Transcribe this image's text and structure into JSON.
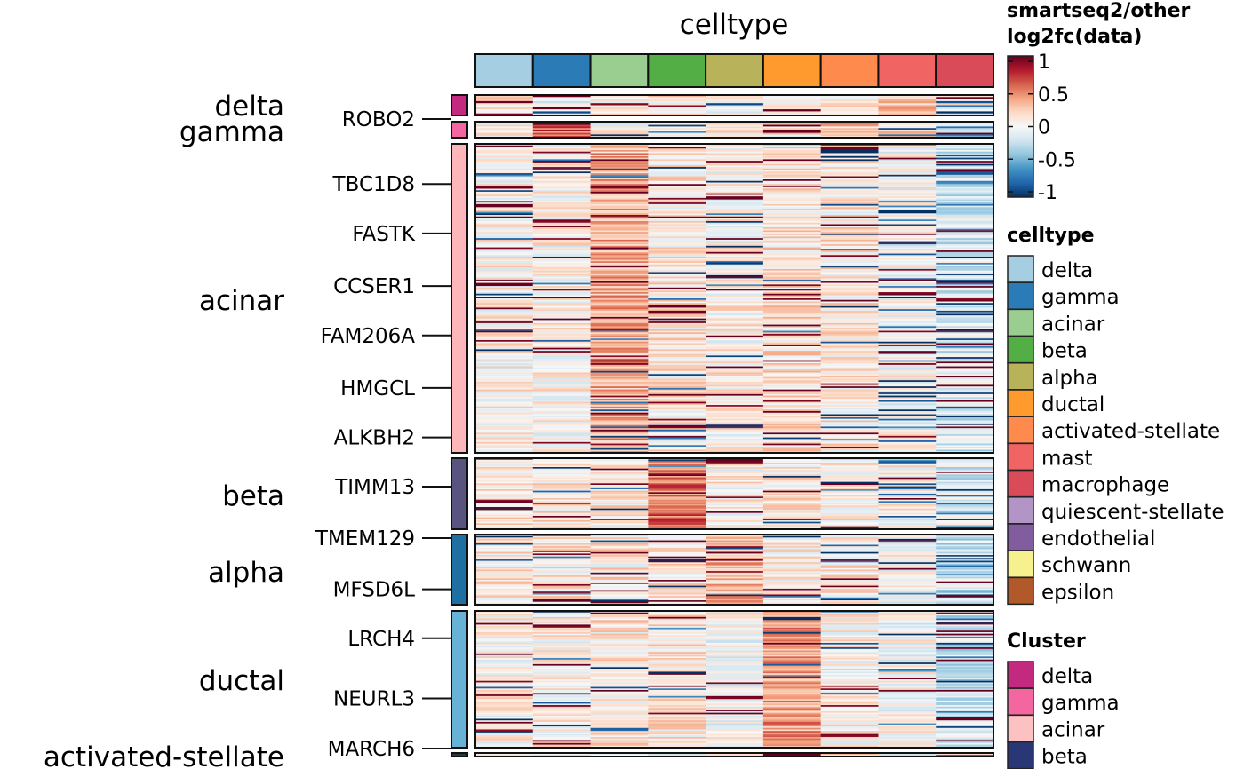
{
  "chart_data": {
    "type": "heatmap",
    "title": "celltype",
    "columns": [
      "delta",
      "gamma",
      "acinar",
      "beta",
      "alpha",
      "ductal",
      "activated-stellate",
      "mast",
      "macrophage"
    ],
    "column_colors": [
      "#A6CEE3",
      "#2B7BB7",
      "#9ACD90",
      "#52AE45",
      "#B8B35B",
      "#FF9A2E",
      "#FF8A4E",
      "#F06464",
      "#DA4B5A"
    ],
    "row_groups": [
      {
        "name": "delta",
        "color": "#C2297F",
        "rows": 10,
        "genes": [
          {
            "label": "ROBO2",
            "pos": 1.0
          }
        ],
        "bias": [
          0.15,
          0.0,
          0.05,
          0.15,
          0.0,
          0.05,
          0.1,
          0.25,
          0.0
        ]
      },
      {
        "name": "gamma",
        "color": "#F466A0",
        "rows": 10,
        "genes": [],
        "bias": [
          0.1,
          0.6,
          0.05,
          0.15,
          0.05,
          0.1,
          0.25,
          0.15,
          -0.3
        ]
      },
      {
        "name": "acinar",
        "color": "#FDB6BA",
        "rows": 200,
        "genes": [
          {
            "label": "TBC1D8",
            "pos": 0.13
          },
          {
            "label": "FASTK",
            "pos": 0.29
          },
          {
            "label": "CCSER1",
            "pos": 0.46
          },
          {
            "label": "FAM206A",
            "pos": 0.62
          },
          {
            "label": "HMGCL",
            "pos": 0.79
          },
          {
            "label": "ALKBH2",
            "pos": 0.95
          }
        ],
        "bias": [
          0.05,
          0.05,
          0.35,
          0.1,
          0.05,
          0.15,
          0.1,
          0.0,
          -0.15
        ]
      },
      {
        "name": "beta",
        "color": "#58537F",
        "rows": 48,
        "genes": [
          {
            "label": "TIMM13",
            "pos": 0.4
          }
        ],
        "bias": [
          0.1,
          0.1,
          0.1,
          0.55,
          0.05,
          0.1,
          0.1,
          0.05,
          -0.15
        ]
      },
      {
        "name": "alpha",
        "color": "#1F6FA3",
        "rows": 48,
        "genes": [
          {
            "label": "TMEM129",
            "pos": 0.05
          },
          {
            "label": "MFSD6L",
            "pos": 0.78
          }
        ],
        "bias": [
          0.1,
          0.1,
          0.1,
          0.1,
          0.3,
          0.05,
          0.1,
          0.0,
          -0.2
        ]
      },
      {
        "name": "ductal",
        "color": "#68B3D5",
        "rows": 90,
        "genes": [
          {
            "label": "LRCH4",
            "pos": 0.2
          },
          {
            "label": "NEURL3",
            "pos": 0.64
          },
          {
            "label": "MARCH6",
            "pos": 1.03
          }
        ],
        "bias": [
          0.05,
          0.05,
          0.1,
          0.1,
          0.0,
          0.4,
          0.05,
          0.0,
          -0.2
        ]
      },
      {
        "name": "activated-stellate",
        "color": "#223B3D",
        "rows": 2,
        "genes": [],
        "bias": [
          0,
          0,
          0,
          0,
          0,
          0,
          0.1,
          0,
          0
        ]
      }
    ],
    "colorbar": {
      "title_line1": "smartseq2/other",
      "title_line2": "log2fc(data)",
      "range": [
        -1,
        1
      ],
      "ticks": [
        "1",
        "0.5",
        "0",
        "-0.5",
        "-1"
      ],
      "tick_values": [
        1,
        0.5,
        0,
        -0.5,
        -1
      ],
      "colors": [
        "#67001F",
        "#B2182B",
        "#D6604D",
        "#F4A582",
        "#FDDBC7",
        "#F7F7F7",
        "#D1E5F0",
        "#92C5DE",
        "#4393C3",
        "#2166AC",
        "#053061"
      ]
    },
    "legends": [
      {
        "title": "celltype",
        "items": [
          {
            "label": "delta",
            "color": "#A6CEE3"
          },
          {
            "label": "gamma",
            "color": "#2B7BB7"
          },
          {
            "label": "acinar",
            "color": "#9ACD90"
          },
          {
            "label": "beta",
            "color": "#52AE45"
          },
          {
            "label": "alpha",
            "color": "#B8B35B"
          },
          {
            "label": "ductal",
            "color": "#FF9A2E"
          },
          {
            "label": "activated-stellate",
            "color": "#FF8A4E"
          },
          {
            "label": "mast",
            "color": "#F06464"
          },
          {
            "label": "macrophage",
            "color": "#DA4B5A"
          },
          {
            "label": "quiescent-stellate",
            "color": "#B294C7"
          },
          {
            "label": "endothelial",
            "color": "#815C9E"
          },
          {
            "label": "schwann",
            "color": "#F7F08F"
          },
          {
            "label": "epsilon",
            "color": "#B15928"
          }
        ]
      },
      {
        "title": "Cluster",
        "items": [
          {
            "label": "delta",
            "color": "#C2297F"
          },
          {
            "label": "gamma",
            "color": "#F466A0"
          },
          {
            "label": "acinar",
            "color": "#FCC2C2"
          },
          {
            "label": "beta",
            "color": "#2A3777"
          }
        ]
      }
    ]
  }
}
